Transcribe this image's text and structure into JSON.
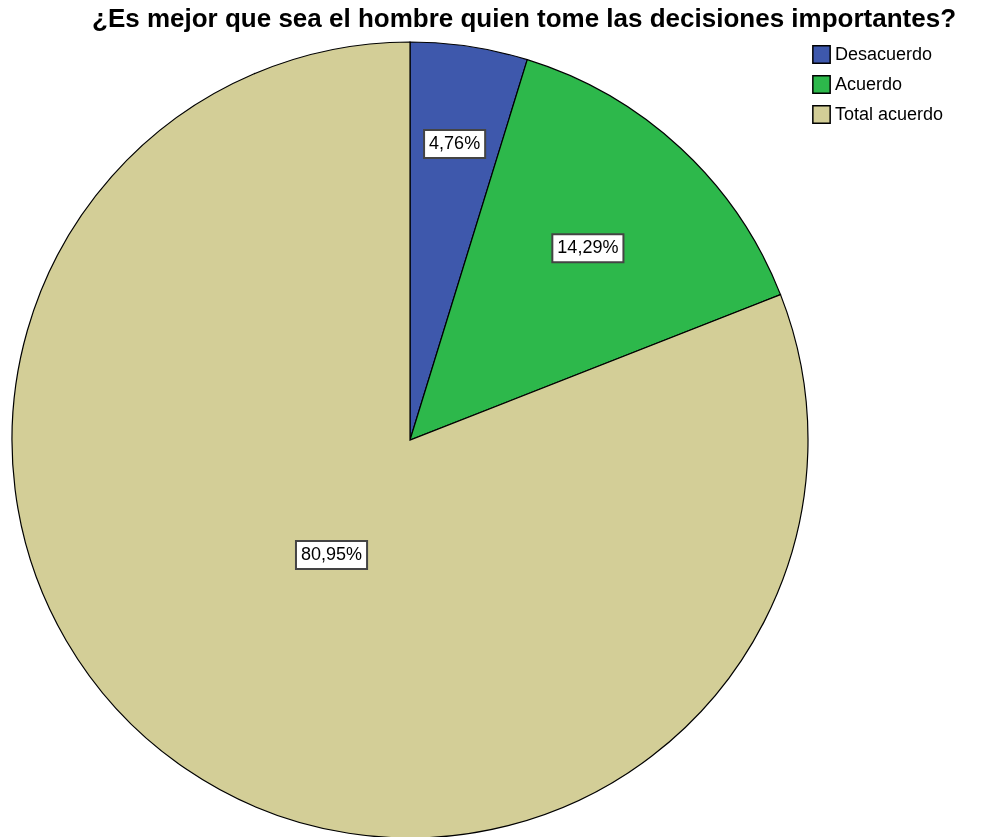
{
  "chart_data": {
    "type": "pie",
    "title": "¿Es mejor que sea el hombre quien tome las decisiones importantes?",
    "categories": [
      "Desacuerdo",
      "Acuerdo",
      "Total acuerdo"
    ],
    "values": [
      4.76,
      14.29,
      80.95
    ],
    "colors": [
      "#3e58ac",
      "#2db84b",
      "#d3ce97"
    ],
    "value_labels": [
      "4,76%",
      "14,29%",
      "80,95%"
    ],
    "legend": "top right"
  }
}
